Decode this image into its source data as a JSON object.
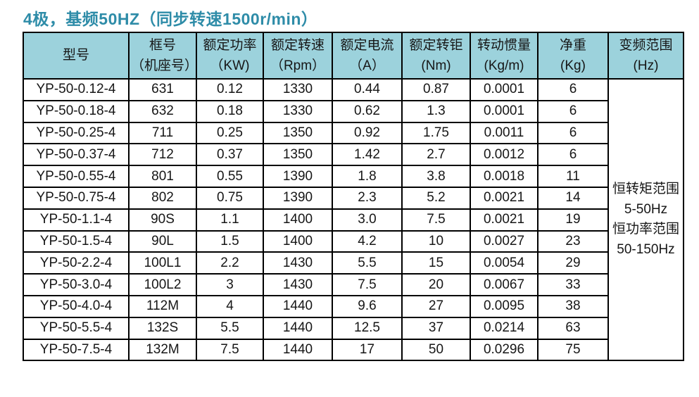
{
  "page": {
    "title": "4极，基频50HZ（同步转速1500r/min）"
  },
  "colors": {
    "title_text": "#2e8ca8",
    "header_background": "#9cd2dc",
    "border": "#000000",
    "body_text": "#161616",
    "page_background": "#ffffff"
  },
  "table": {
    "columns": [
      {
        "line1": "型号",
        "line2": ""
      },
      {
        "line1": "框号",
        "line2": "（机座号）"
      },
      {
        "line1": "额定功率",
        "line2": "（KW)"
      },
      {
        "line1": "额定转速",
        "line2": "（Rpm）"
      },
      {
        "line1": "额定电流",
        "line2": "（A）"
      },
      {
        "line1": "额定转钜",
        "line2": "(Nm)"
      },
      {
        "line1": "转动惯量",
        "line2": "(Kg/m)"
      },
      {
        "line1": "净重",
        "line2": "(Kg)"
      },
      {
        "line1": "变频范围",
        "line2": "(Hz)"
      }
    ],
    "rows": [
      [
        "YP-50-0.12-4",
        "631",
        "0.12",
        "1330",
        "0.44",
        "0.87",
        "0.0001",
        "6"
      ],
      [
        "YP-50-0.18-4",
        "632",
        "0.18",
        "1330",
        "0.62",
        "1.3",
        "0.0001",
        "6"
      ],
      [
        "YP-50-0.25-4",
        "711",
        "0.25",
        "1350",
        "0.92",
        "1.75",
        "0.0011",
        "6"
      ],
      [
        "YP-50-0.37-4",
        "712",
        "0.37",
        "1350",
        "1.42",
        "2.7",
        "0.0012",
        "6"
      ],
      [
        "YP-50-0.55-4",
        "801",
        "0.55",
        "1390",
        "1.8",
        "3.8",
        "0.0018",
        "11"
      ],
      [
        "YP-50-0.75-4",
        "802",
        "0.75",
        "1390",
        "2.3",
        "5.2",
        "0.0021",
        "14"
      ],
      [
        "YP-50-1.1-4",
        "90S",
        "1.1",
        "1400",
        "3.0",
        "7.5",
        "0.0021",
        "19"
      ],
      [
        "YP-50-1.5-4",
        "90L",
        "1.5",
        "1400",
        "4.2",
        "10",
        "0.0027",
        "23"
      ],
      [
        "YP-50-2.2-4",
        "100L1",
        "2.2",
        "1430",
        "5.5",
        "15",
        "0.0054",
        "29"
      ],
      [
        "YP-50-3.0-4",
        "100L2",
        "3",
        "1430",
        "7.5",
        "20",
        "0.0067",
        "33"
      ],
      [
        "YP-50-4.0-4",
        "112M",
        "4",
        "1440",
        "9.6",
        "27",
        "0.0095",
        "38"
      ],
      [
        "YP-50-5.5-4",
        "132S",
        "5.5",
        "1440",
        "12.5",
        "37",
        "0.0214",
        "63"
      ],
      [
        "YP-50-7.5-4",
        "132M",
        "7.5",
        "1440",
        "17",
        "50",
        "0.0296",
        "75"
      ]
    ],
    "freq_range": {
      "lines": [
        "恒转矩范围",
        "5-50Hz",
        "恒功率范围",
        "50-150Hz"
      ]
    }
  }
}
